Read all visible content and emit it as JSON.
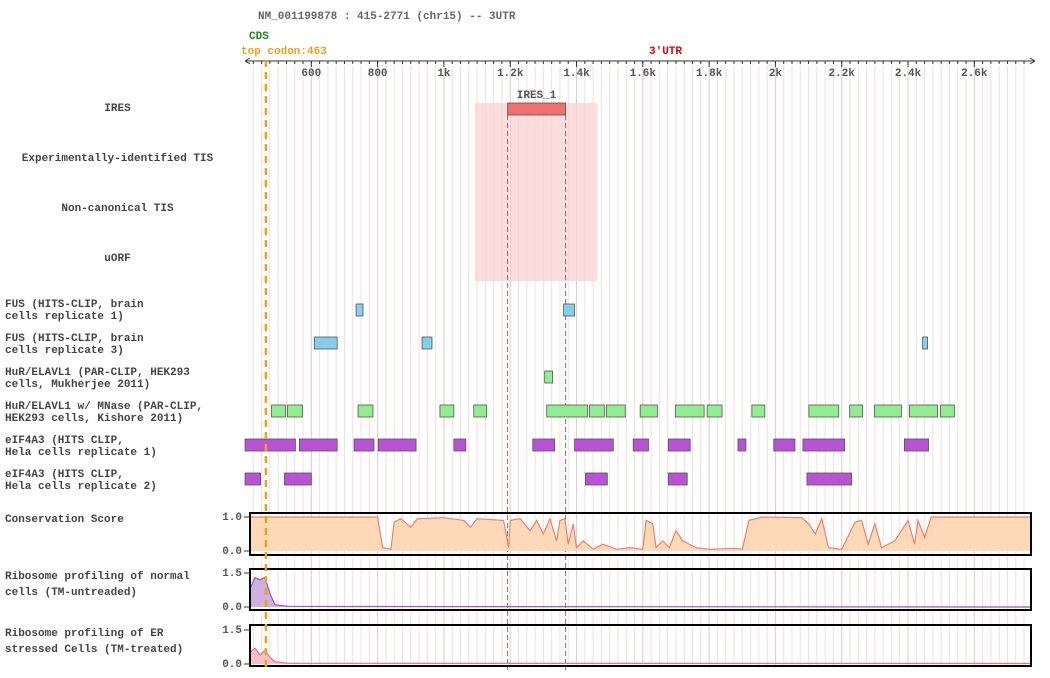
{
  "header": {
    "title": "NM_001199878 : 415-2771 (chr15) -- 3UTR",
    "cds_label": "CDS",
    "utr_label": "3'UTR",
    "start_codon": {
      "label": "top codon:463",
      "position": 463,
      "color": "#f0a020"
    }
  },
  "axis": {
    "xlim": [
      415,
      2771
    ],
    "xticks": [
      600,
      800,
      {
        "value": 1000,
        "label": "1k"
      },
      {
        "value": 1200,
        "label": "1.2k"
      },
      {
        "value": 1400,
        "label": "1.4k"
      },
      {
        "value": 1600,
        "label": "1.6k"
      },
      {
        "value": 1800,
        "label": "1.8k"
      },
      {
        "value": 2000,
        "label": "2k"
      },
      {
        "value": 2200,
        "label": "2.2k"
      },
      {
        "value": 2400,
        "label": "2.4k"
      },
      {
        "value": 2600,
        "label": "2.6k"
      }
    ]
  },
  "tracks": [
    {
      "label": "IRES",
      "color": "#f07070",
      "highlight": [
        1093,
        1463
      ],
      "features": [
        {
          "name": "IRES_1",
          "start": 1192,
          "end": 1367
        }
      ]
    },
    {
      "label": "Experimentally-identified TIS",
      "features": []
    },
    {
      "label": "Non-canonical TIS",
      "features": []
    },
    {
      "label": "uORF",
      "features": []
    },
    {
      "label": "FUS (HITS-CLIP, brain\ncells replicate 1)",
      "color": "#87ceeb",
      "features": [
        {
          "start": 735,
          "end": 756
        },
        {
          "start": 1361,
          "end": 1394
        }
      ]
    },
    {
      "label": "FUS (HITS-CLIP, brain\ncells replicate 3)",
      "color": "#87ceeb",
      "features": [
        {
          "start": 609,
          "end": 678
        },
        {
          "start": 934,
          "end": 964
        },
        {
          "start": 2444,
          "end": 2459
        }
      ]
    },
    {
      "label": "HuR/ELAVL1 (PAR-CLIP, HEK293\ncells, Mukherjee 2011)",
      "color": "#90ee90",
      "features": [
        {
          "start": 1304,
          "end": 1328
        }
      ]
    },
    {
      "label": "HuR/ELAVL1 w/ MNase (PAR-CLIP,\nHEK293 cells, Kishore 2011)",
      "color": "#90ee90",
      "features": [
        {
          "start": 480,
          "end": 522
        },
        {
          "start": 528,
          "end": 573
        },
        {
          "start": 741,
          "end": 786
        },
        {
          "start": 988,
          "end": 1030
        },
        {
          "start": 1090,
          "end": 1129
        },
        {
          "start": 1310,
          "end": 1433
        },
        {
          "start": 1439,
          "end": 1484
        },
        {
          "start": 1490,
          "end": 1547
        },
        {
          "start": 1592,
          "end": 1644
        },
        {
          "start": 1698,
          "end": 1785
        },
        {
          "start": 1794,
          "end": 1839
        },
        {
          "start": 1929,
          "end": 1968
        },
        {
          "start": 2101,
          "end": 2191
        },
        {
          "start": 2224,
          "end": 2263
        },
        {
          "start": 2299,
          "end": 2380
        },
        {
          "start": 2404,
          "end": 2489
        },
        {
          "start": 2498,
          "end": 2540
        }
      ]
    },
    {
      "label": "eIF4A3 (HITS CLIP,\nHela cells replicate 1)",
      "color": "#b753d4",
      "features": [
        {
          "start": 400,
          "end": 552
        },
        {
          "start": 564,
          "end": 678
        },
        {
          "start": 729,
          "end": 789
        },
        {
          "start": 802,
          "end": 916
        },
        {
          "start": 1030,
          "end": 1066
        },
        {
          "start": 1268,
          "end": 1334
        },
        {
          "start": 1394,
          "end": 1511
        },
        {
          "start": 1571,
          "end": 1617
        },
        {
          "start": 1677,
          "end": 1743
        },
        {
          "start": 1887,
          "end": 1911
        },
        {
          "start": 1995,
          "end": 2059
        },
        {
          "start": 2083,
          "end": 2209
        },
        {
          "start": 2389,
          "end": 2462
        }
      ]
    },
    {
      "label": "eIF4A3 (HITS CLIP,\nHela cells replicate 2)",
      "color": "#b753d4",
      "features": [
        {
          "start": 400,
          "end": 447
        },
        {
          "start": 519,
          "end": 600
        },
        {
          "start": 1427,
          "end": 1493
        },
        {
          "start": 1677,
          "end": 1734
        },
        {
          "start": 2095,
          "end": 2230
        }
      ]
    }
  ],
  "quant_tracks": [
    {
      "label": "Conservation Score",
      "color": "#f08070",
      "fill": "#fdd9b8",
      "ylim": [
        0,
        1
      ],
      "yticks": [
        {
          "value": 0,
          "label": "0.0"
        },
        {
          "value": 1,
          "label": "1.0"
        }
      ],
      "x": [
        415,
        800,
        815,
        840,
        850,
        870,
        900,
        920,
        1000,
        1060,
        1080,
        1100,
        1180,
        1195,
        1200,
        1230,
        1260,
        1280,
        1300,
        1320,
        1340,
        1350,
        1365,
        1375,
        1390,
        1400,
        1420,
        1450,
        1480,
        1520,
        1560,
        1600,
        1610,
        1630,
        1640,
        1660,
        1680,
        1700,
        1720,
        1760,
        1800,
        1880,
        1900,
        1920,
        1960,
        2080,
        2100,
        2120,
        2140,
        2160,
        2200,
        2240,
        2260,
        2280,
        2300,
        2320,
        2360,
        2400,
        2420,
        2430,
        2450,
        2470,
        2771
      ],
      "values": [
        1.0,
        1.0,
        0.1,
        0.05,
        0.85,
        0.95,
        0.7,
        0.95,
        0.98,
        0.9,
        0.7,
        0.95,
        0.9,
        0.1,
        0.9,
        0.95,
        0.6,
        0.9,
        0.5,
        0.95,
        0.3,
        0.9,
        0.95,
        0.2,
        0.8,
        0.1,
        0.3,
        0.05,
        0.2,
        0.05,
        0.1,
        0.05,
        0.9,
        0.8,
        0.1,
        0.3,
        0.1,
        0.6,
        0.3,
        0.1,
        0.05,
        0.08,
        0.05,
        0.9,
        1.0,
        0.98,
        0.8,
        0.5,
        0.95,
        0.1,
        0.05,
        0.85,
        0.9,
        0.2,
        0.8,
        0.1,
        0.3,
        0.9,
        0.2,
        0.9,
        0.4,
        1.0,
        1.0
      ]
    },
    {
      "label": "Ribosome profiling of normal\ncells (TM-untreaded)",
      "color": "#a050d0",
      "fill": "#d0b0e0",
      "ylim": [
        0,
        1.5
      ],
      "yticks": [
        {
          "value": 0,
          "label": "0.0"
        },
        1.5
      ],
      "x": [
        415,
        430,
        445,
        460,
        475,
        490,
        530,
        700,
        2771
      ],
      "values": [
        0.8,
        1.3,
        1.2,
        1.3,
        0.6,
        0.1,
        0.03,
        0.02,
        0.0
      ]
    },
    {
      "label": "Ribosome profiling of ER\nstressed Cells (TM-treated)",
      "color": "#f07090",
      "fill": "#f8c0c8",
      "ylim": [
        0,
        1.5
      ],
      "yticks": [
        {
          "value": 0,
          "label": "0.0"
        },
        1.5
      ],
      "x": [
        415,
        430,
        445,
        460,
        475,
        490,
        530,
        2771
      ],
      "values": [
        0.5,
        0.7,
        0.4,
        0.6,
        0.3,
        0.1,
        0.03,
        0.02
      ]
    }
  ]
}
